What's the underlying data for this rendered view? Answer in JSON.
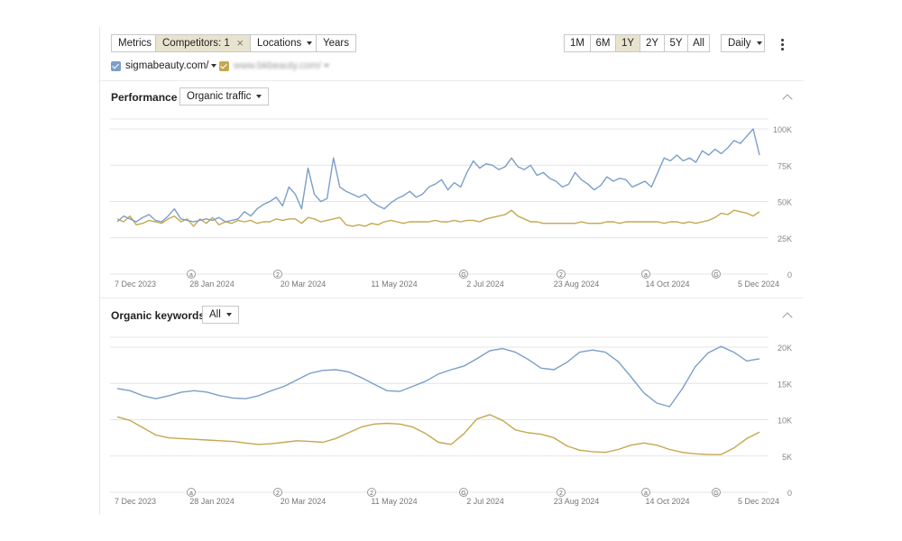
{
  "toolbar": {
    "metrics_label": "Metrics",
    "competitors_label": "Competitors: 1",
    "locations_label": "Locations",
    "years_label": "Years",
    "ranges": [
      "1M",
      "6M",
      "1Y",
      "2Y",
      "5Y",
      "All"
    ],
    "active_range": "1Y",
    "interval_label": "Daily"
  },
  "legend": {
    "primary_site": "sigmabeauty.com/",
    "competitor_site": "www.bkbeauty.com/",
    "colors": {
      "primary": "#7b9fc9",
      "competitor": "#c4a850"
    }
  },
  "sections": {
    "performance": {
      "title": "Performance",
      "dropdown": "Organic traffic"
    },
    "keywords": {
      "title": "Organic keywords",
      "dropdown": "All"
    }
  },
  "chart_data": [
    {
      "type": "line",
      "ylim": [
        0,
        100000
      ],
      "yticks": [
        "100K",
        "75K",
        "50K",
        "25K",
        "0"
      ],
      "xticks": [
        "7 Dec 2023",
        "28 Jan 2024",
        "20 Mar 2024",
        "11 May 2024",
        "2 Jul 2024",
        "23 Aug 2024",
        "14 Oct 2024",
        "5 Dec 2024"
      ],
      "annotations": [
        "a",
        "2",
        "G",
        "2",
        "a",
        "G"
      ],
      "series": [
        {
          "name": "sigmabeauty.com/",
          "color": "#7b9fc9",
          "values": [
            36000,
            40000,
            38000,
            36000,
            39000,
            41000,
            37000,
            36000,
            40000,
            45000,
            38000,
            37000,
            36000,
            37000,
            38000,
            37000,
            39000,
            36000,
            37000,
            38000,
            43000,
            40000,
            45000,
            48000,
            50000,
            53000,
            47000,
            60000,
            55000,
            45000,
            73000,
            55000,
            50000,
            52000,
            80000,
            60000,
            57000,
            55000,
            53000,
            55000,
            50000,
            47000,
            45000,
            49000,
            52000,
            54000,
            57000,
            53000,
            55000,
            60000,
            62000,
            65000,
            58000,
            63000,
            60000,
            70000,
            78000,
            73000,
            76000,
            75000,
            72000,
            74000,
            80000,
            74000,
            72000,
            75000,
            68000,
            70000,
            66000,
            64000,
            60000,
            62000,
            70000,
            65000,
            62000,
            58000,
            61000,
            67000,
            64000,
            66000,
            65000,
            60000,
            62000,
            64000,
            60000,
            70000,
            80000,
            78000,
            82000,
            78000,
            80000,
            77000,
            85000,
            82000,
            86000,
            83000,
            87000,
            92000,
            90000,
            95000,
            100000,
            82000
          ]
        },
        {
          "name": "www.bkbeauty.com/",
          "color": "#c4a850",
          "values": [
            38000,
            36000,
            40000,
            34000,
            35000,
            37000,
            36000,
            35000,
            38000,
            40000,
            36000,
            38000,
            33000,
            38000,
            35000,
            39000,
            34000,
            36000,
            35000,
            37000,
            36000,
            37000,
            35000,
            36000,
            36000,
            38000,
            37000,
            38000,
            38000,
            35000,
            39000,
            38000,
            36000,
            37000,
            38000,
            39000,
            34000,
            33000,
            34000,
            33000,
            35000,
            34000,
            36000,
            37000,
            36000,
            35000,
            36000,
            36000,
            36000,
            36000,
            37000,
            36000,
            36000,
            37000,
            36000,
            37000,
            37000,
            36000,
            38000,
            39000,
            40000,
            41000,
            44000,
            40000,
            38000,
            36000,
            36000,
            35000,
            35000,
            35000,
            35000,
            35000,
            35000,
            36000,
            35000,
            35000,
            35000,
            36000,
            36000,
            35000,
            36000,
            36000,
            36000,
            36000,
            36000,
            36000,
            35000,
            36000,
            36000,
            35000,
            36000,
            35000,
            36000,
            37000,
            39000,
            42000,
            41000,
            44000,
            43000,
            42000,
            40000,
            43000
          ]
        }
      ]
    },
    {
      "type": "line",
      "ylim": [
        0,
        20000
      ],
      "yticks": [
        "20K",
        "15K",
        "10K",
        "5K",
        "0"
      ],
      "xticks": [
        "7 Dec 2023",
        "28 Jan 2024",
        "20 Mar 2024",
        "11 May 2024",
        "2 Jul 2024",
        "23 Aug 2024",
        "14 Oct 2024",
        "5 Dec 2024"
      ],
      "annotations": [
        "a",
        "2",
        "2",
        "G",
        "2",
        "a",
        "G"
      ],
      "series": [
        {
          "name": "sigmabeauty.com/",
          "color": "#7b9fc9",
          "values": [
            14300,
            14000,
            13300,
            12900,
            13300,
            13800,
            14000,
            13800,
            13300,
            13000,
            12900,
            13300,
            14000,
            14600,
            15500,
            16400,
            16800,
            16900,
            16600,
            15800,
            14900,
            14000,
            13900,
            14600,
            15300,
            16300,
            16900,
            17400,
            18400,
            19500,
            19800,
            19300,
            18300,
            17100,
            16900,
            17900,
            19300,
            19600,
            19300,
            18000,
            15900,
            13700,
            12300,
            11800,
            14300,
            17300,
            19200,
            20100,
            19300,
            18100,
            18400
          ]
        },
        {
          "name": "www.bkbeauty.com/",
          "color": "#c4a850",
          "values": [
            10400,
            9900,
            8900,
            7900,
            7500,
            7400,
            7300,
            7200,
            7100,
            7000,
            6800,
            6600,
            6700,
            6900,
            7100,
            7000,
            6900,
            7400,
            8200,
            9000,
            9400,
            9500,
            9400,
            9000,
            8100,
            6900,
            6600,
            8100,
            10100,
            10700,
            9900,
            8600,
            8200,
            8000,
            7500,
            6400,
            5800,
            5600,
            5500,
            5900,
            6500,
            6800,
            6500,
            5900,
            5500,
            5300,
            5200,
            5200,
            6100,
            7400,
            8300
          ]
        }
      ]
    }
  ]
}
